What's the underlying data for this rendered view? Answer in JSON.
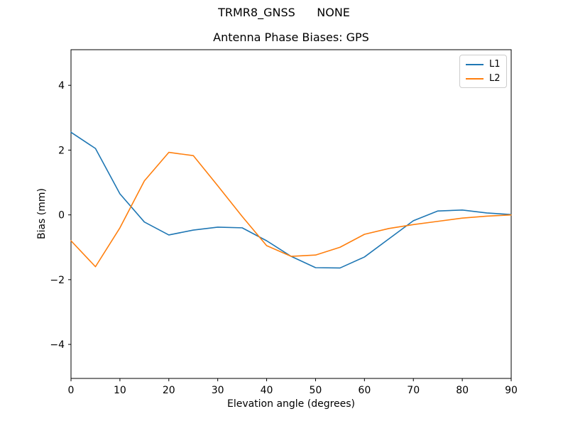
{
  "chart_data": {
    "type": "line",
    "suptitle": "TRMR8_GNSS      NONE",
    "title": "Antenna Phase Biases: GPS",
    "xlabel": "Elevation angle (degrees)",
    "ylabel": "Bias (mm)",
    "xlim": [
      0,
      90
    ],
    "ylim": [
      -5.05,
      5.1
    ],
    "xticks": [
      0,
      10,
      20,
      30,
      40,
      50,
      60,
      70,
      80,
      90
    ],
    "yticks": [
      -4,
      -2,
      0,
      2,
      4
    ],
    "grid": false,
    "frame_color": "#000000",
    "legend": {
      "position": "upper right",
      "entries": [
        "L1",
        "L2"
      ]
    },
    "x": [
      0,
      5,
      10,
      15,
      20,
      25,
      30,
      35,
      40,
      45,
      50,
      55,
      60,
      65,
      70,
      75,
      80,
      85,
      90
    ],
    "series": [
      {
        "name": "L1",
        "color": "#1f77b4",
        "values": [
          2.55,
          2.05,
          0.65,
          -0.22,
          -0.62,
          -0.47,
          -0.38,
          -0.4,
          -0.8,
          -1.28,
          -1.63,
          -1.64,
          -1.3,
          -0.74,
          -0.18,
          0.12,
          0.15,
          0.06,
          0.01
        ]
      },
      {
        "name": "L2",
        "color": "#ff7f0e",
        "values": [
          -0.8,
          -1.6,
          -0.4,
          1.05,
          1.93,
          1.83,
          0.9,
          -0.05,
          -0.95,
          -1.28,
          -1.24,
          -1.0,
          -0.6,
          -0.42,
          -0.3,
          -0.2,
          -0.1,
          -0.04,
          0.0
        ]
      }
    ]
  }
}
